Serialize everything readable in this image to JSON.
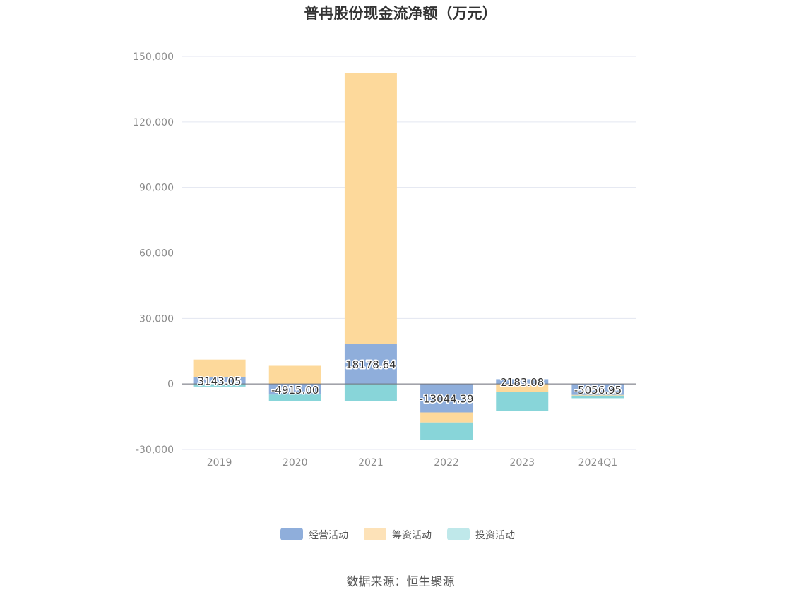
{
  "chart_data": {
    "type": "bar",
    "stacked": true,
    "title": "普冉股份现金流净额（万元）",
    "categories": [
      "2019",
      "2020",
      "2021",
      "2022",
      "2023",
      "2024Q1"
    ],
    "ylim": [
      -30000,
      150000
    ],
    "yticks": [
      -30000,
      0,
      30000,
      60000,
      90000,
      120000,
      150000
    ],
    "ytick_labels": [
      "-30,000",
      "0",
      "30,000",
      "60,000",
      "90,000",
      "120,000",
      "150,000"
    ],
    "grid": true,
    "legend_position": "bottom",
    "series": [
      {
        "name": "经营活动",
        "color": "#8faedb",
        "values": [
          3143.05,
          -4915.0,
          18178.64,
          -13044.39,
          2183.08,
          -5056.95
        ],
        "data_labels": [
          "3143.05",
          "-4915.00",
          "18178.64",
          "-13044.39",
          "2183.08",
          "-5056.95"
        ]
      },
      {
        "name": "筹资活动",
        "color": "#fdd99b",
        "values": [
          8000,
          8300,
          124200,
          -4600,
          -3500,
          -300
        ]
      },
      {
        "name": "投资活动",
        "color": "#88d5d9",
        "values": [
          -1200,
          -3000,
          -8000,
          -8000,
          -8800,
          -1200
        ]
      }
    ],
    "legend_colors": [
      "#8faedb",
      "#fde2b8",
      "#bfe8ea"
    ]
  },
  "source_text": "数据来源：恒生聚源"
}
